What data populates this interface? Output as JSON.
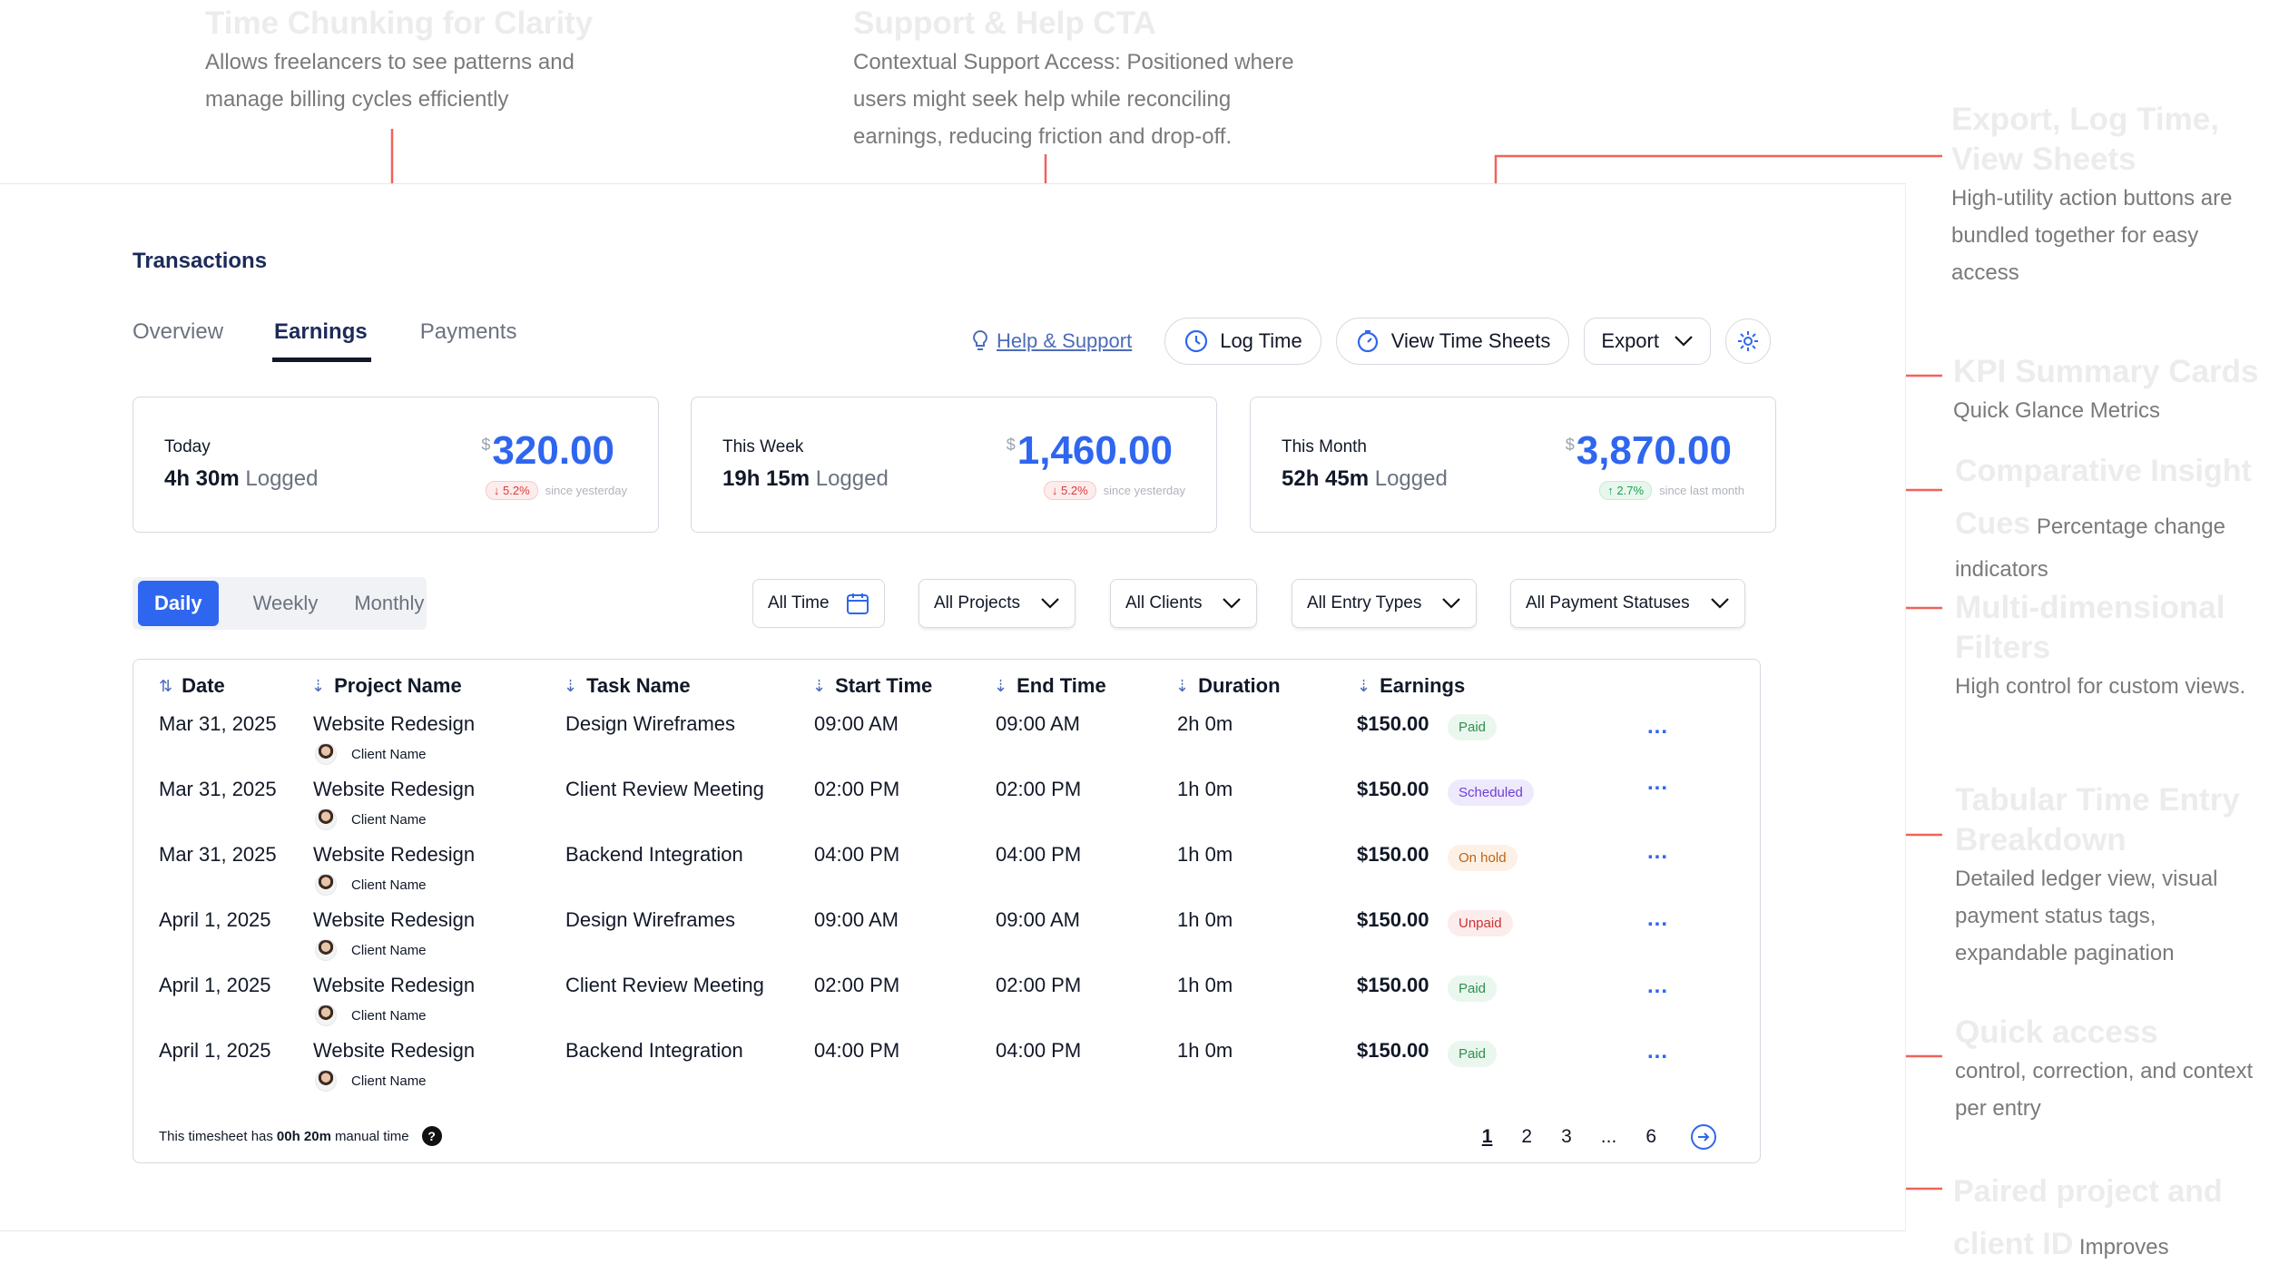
{
  "annotations": {
    "time_chunking": {
      "title": "Time Chunking for Clarity",
      "body": "Allows freelancers to see patterns and manage billing cycles efficiently"
    },
    "support_cta": {
      "title": "Support & Help CTA",
      "body": "Contextual Support Access: Positioned where users might seek help while reconciling earnings, reducing friction and drop-off."
    },
    "export_log": {
      "title": "Export, Log Time, View Sheets",
      "body": "High-utility action buttons are bundled together for easy access"
    },
    "kpi_cards": {
      "title": "KPI Summary Cards",
      "body": "Quick Glance Metrics"
    },
    "comparative": {
      "title": "Comparative Insight Cues",
      "body": "Percentage change indicators"
    },
    "filters": {
      "title": "Multi-dimensional Filters",
      "body": "High control for custom views."
    },
    "tabular": {
      "title": "Tabular Time Entry Breakdown",
      "body": "Detailed ledger view, visual payment status tags, expandable pagination"
    },
    "quick_access": {
      "title": "Quick access",
      "body": "control, correction, and context per entry"
    },
    "paired": {
      "title": "Paired project and client ID",
      "body": "Improves recognition and recall"
    }
  },
  "page": {
    "title": "Transactions"
  },
  "tabs": [
    {
      "label": "Overview"
    },
    {
      "label": "Earnings"
    },
    {
      "label": "Payments"
    }
  ],
  "toolbar": {
    "help": "Help & Support",
    "log_time": "Log Time",
    "view_sheets": "View Time Sheets",
    "export": "Export"
  },
  "kpis": [
    {
      "label": "Today",
      "hours": "4h 30m",
      "logged": "Logged",
      "currency": "$",
      "amount": "320.00",
      "delta": "5.2%",
      "delta_dir": "down",
      "since": "since yesterday"
    },
    {
      "label": "This Week",
      "hours": "19h 15m",
      "logged": "Logged",
      "currency": "$",
      "amount": "1,460.00",
      "delta": "5.2%",
      "delta_dir": "down",
      "since": "since yesterday"
    },
    {
      "label": "This Month",
      "hours": "52h 45m",
      "logged": "Logged",
      "currency": "$",
      "amount": "3,870.00",
      "delta": "2.7%",
      "delta_dir": "up",
      "since": "since last month"
    }
  ],
  "period": [
    "Daily",
    "Weekly",
    "Monthly"
  ],
  "filters": {
    "time": "All Time",
    "projects": "All Projects",
    "clients": "All Clients",
    "entry_types": "All Entry Types",
    "payment_statuses": "All Payment Statuses"
  },
  "table": {
    "headers": [
      "Date",
      "Project Name",
      "Task Name",
      "Start Time",
      "End Time",
      "Duration",
      "Earnings"
    ],
    "rows": [
      {
        "date": "Mar 31, 2025",
        "project": "Website Redesign",
        "client": "Client Name",
        "task": "Design Wireframes",
        "start": "09:00 AM",
        "end": "09:00 AM",
        "duration": "2h 0m",
        "earnings": "$150.00",
        "status": "Paid"
      },
      {
        "date": "Mar 31, 2025",
        "project": "Website Redesign",
        "client": "Client Name",
        "task": "Client Review Meeting",
        "start": "02:00 PM",
        "end": "02:00 PM",
        "duration": "1h 0m",
        "earnings": "$150.00",
        "status": "Scheduled"
      },
      {
        "date": "Mar 31, 2025",
        "project": "Website Redesign",
        "client": "Client Name",
        "task": "Backend Integration",
        "start": "04:00 PM",
        "end": "04:00 PM",
        "duration": "1h 0m",
        "earnings": "$150.00",
        "status": "On hold"
      },
      {
        "date": "April 1, 2025",
        "project": "Website Redesign",
        "client": "Client Name",
        "task": "Design Wireframes",
        "start": "09:00 AM",
        "end": "09:00 AM",
        "duration": "1h 0m",
        "earnings": "$150.00",
        "status": "Unpaid"
      },
      {
        "date": "April 1, 2025",
        "project": "Website Redesign",
        "client": "Client Name",
        "task": "Client Review Meeting",
        "start": "02:00 PM",
        "end": "02:00 PM",
        "duration": "1h 0m",
        "earnings": "$150.00",
        "status": "Paid"
      },
      {
        "date": "April 1, 2025",
        "project": "Website Redesign",
        "client": "Client Name",
        "task": "Backend Integration",
        "start": "04:00 PM",
        "end": "04:00 PM",
        "duration": "1h 0m",
        "earnings": "$150.00",
        "status": "Paid"
      }
    ],
    "more_label": "...",
    "footer_prefix": "This timesheet has",
    "footer_bold": "00h 20m",
    "footer_suffix": "manual time",
    "pages": [
      "1",
      "2",
      "3",
      "...",
      "6"
    ]
  },
  "colors": {
    "accent": "#2f66f0",
    "annotation_line": "#f0625a",
    "navy": "#1d2b5a"
  },
  "icons": [
    "lightbulb-icon",
    "clock-icon",
    "stopwatch-icon",
    "chevron-down-icon",
    "gear-icon",
    "calendar-icon",
    "sort-icon",
    "question-icon",
    "arrow-right-circle-icon"
  ]
}
